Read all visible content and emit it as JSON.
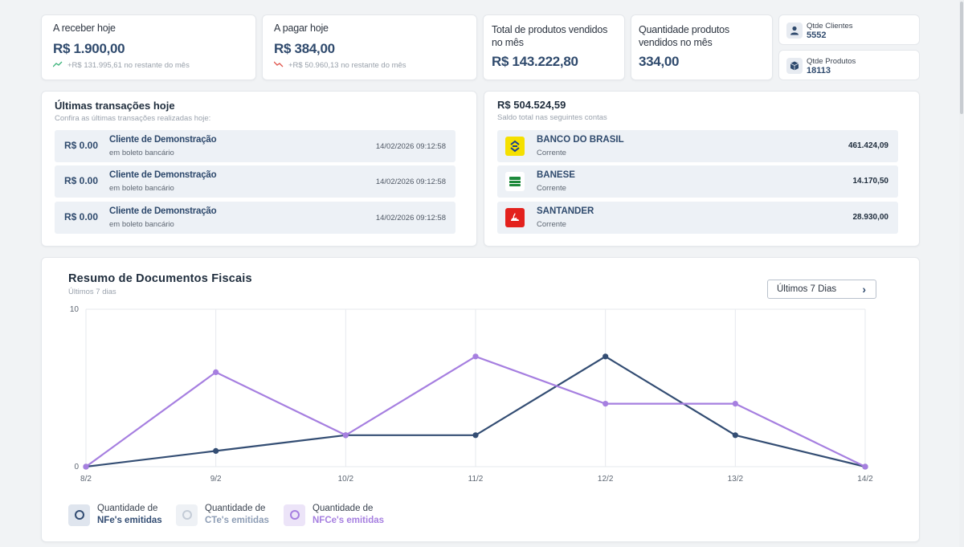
{
  "kpis": {
    "receive_today": {
      "label": "A receber hoje",
      "value": "R$ 1.900,00",
      "sub": "+R$ 131.995,61 no restante do mês"
    },
    "pay_today": {
      "label": "A pagar hoje",
      "value": "R$ 384,00",
      "sub": "+R$ 50.960,13 no restante do mês"
    },
    "total_sold": {
      "label": "Total de produtos vendidos no mês",
      "value": "R$ 143.222,80"
    },
    "qty_sold": {
      "label": "Quantidade produtos vendidos no mês",
      "value": "334,00"
    },
    "clients": {
      "label": "Qtde Clientes",
      "value": "5552"
    },
    "products": {
      "label": "Qtde Produtos",
      "value": "18113"
    }
  },
  "transactions": {
    "title": "Últimas transações hoje",
    "subtitle": "Confira as últimas transações realizadas hoje:",
    "items": [
      {
        "amount": "R$ 0.00",
        "name": "Cliente de Demonstração",
        "desc": "em boleto bancário",
        "datetime": "14/02/2026 09:12:58"
      },
      {
        "amount": "R$ 0.00",
        "name": "Cliente de Demonstração",
        "desc": "em boleto bancário",
        "datetime": "14/02/2026 09:12:58"
      },
      {
        "amount": "R$ 0.00",
        "name": "Cliente de Demonstração",
        "desc": "em boleto bancário",
        "datetime": "14/02/2026 09:12:58"
      }
    ]
  },
  "accounts": {
    "total": "R$ 504.524,59",
    "subtitle": "Saldo total nas seguintes contas",
    "items": [
      {
        "name": "BANCO DO BRASIL",
        "type": "Corrente",
        "balance": "461.424,09",
        "color": "#f5e000"
      },
      {
        "name": "BANESE",
        "type": "Corrente",
        "balance": "14.170,50",
        "color": "#1e8a3c"
      },
      {
        "name": "SANTANDER",
        "type": "Corrente",
        "balance": "28.930,00",
        "color": "#e3211d"
      }
    ]
  },
  "fiscal": {
    "title": "Resumo de Documentos Fiscais",
    "subtitle": "Últimos 7 dias",
    "range_button": "Últimos 7 Dias",
    "legend": [
      {
        "t1": "Quantidade de",
        "t2": "NFe's emitidas",
        "color": "#334d73",
        "bg": "#dfe5ee"
      },
      {
        "t1": "Quantidade de",
        "t2": "CTe's emitidas",
        "color": "#8d9db5",
        "bg": "#eef1f5"
      },
      {
        "t1": "Quantidade de",
        "t2": "NFCe's emitidas",
        "color": "#a67fe0",
        "bg": "#ece4f8"
      }
    ]
  },
  "chart_data": {
    "type": "line",
    "x": [
      "8/2",
      "9/2",
      "10/2",
      "11/2",
      "12/2",
      "13/2",
      "14/2"
    ],
    "ylim": [
      0,
      10
    ],
    "yticks": [
      "0",
      "10"
    ],
    "grid": true,
    "series": [
      {
        "name": "NFe's emitidas",
        "color": "#334d73",
        "values": [
          0,
          1,
          2,
          2,
          7,
          2,
          0
        ]
      },
      {
        "name": "NFCe's emitidas",
        "color": "#a67fe0",
        "values": [
          0,
          6,
          2,
          7,
          4,
          4,
          0
        ]
      }
    ]
  }
}
